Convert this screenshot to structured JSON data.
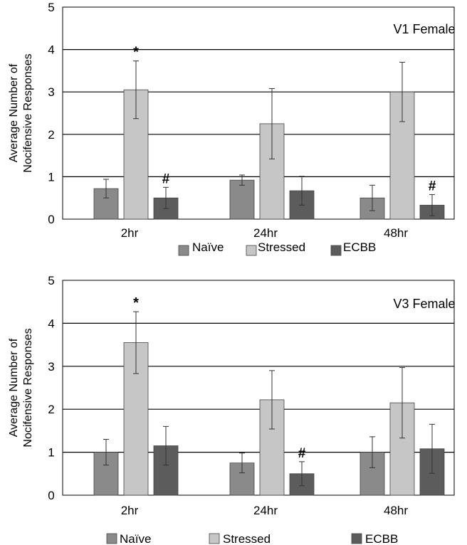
{
  "chart_data": [
    {
      "type": "bar",
      "title": "V1 Female",
      "ylabel": "Average Number of Nocifensive Responses",
      "ylabel_lines": [
        "Average Number of",
        "Nocifensive Responses"
      ],
      "xlabel": "",
      "ylim": [
        0,
        5
      ],
      "yticks": [
        "0",
        "1",
        "2",
        "3",
        "4",
        "5"
      ],
      "grid": true,
      "categories": [
        "2hr",
        "24hr",
        "48hr"
      ],
      "series": [
        {
          "name": "Naïve",
          "color": "#8a8a8a",
          "values": [
            0.72,
            0.92,
            0.5
          ],
          "errors": [
            0.22,
            0.12,
            0.3
          ]
        },
        {
          "name": "Stressed",
          "color": "#c6c6c6",
          "values": [
            3.05,
            2.25,
            3.0
          ],
          "errors": [
            0.68,
            0.83,
            0.7
          ]
        },
        {
          "name": "ECBB",
          "color": "#5c5c5c",
          "values": [
            0.5,
            0.67,
            0.33
          ],
          "errors": [
            0.25,
            0.34,
            0.25
          ]
        }
      ],
      "annotations": [
        {
          "category": "2hr",
          "series": "Stressed",
          "text": "*"
        },
        {
          "category": "2hr",
          "series": "ECBB",
          "text": "#"
        },
        {
          "category": "48hr",
          "series": "ECBB",
          "text": "#"
        }
      ],
      "legend": [
        "Naïve",
        "Stressed",
        "ECBB"
      ]
    },
    {
      "type": "bar",
      "title": "V3 Female",
      "ylabel": "Average Number of Nocifensive Responses",
      "ylabel_lines": [
        "Average Number of",
        "Nocifensive Responses"
      ],
      "xlabel": "",
      "ylim": [
        0,
        5
      ],
      "yticks": [
        "0",
        "1",
        "2",
        "3",
        "4",
        "5"
      ],
      "grid": true,
      "categories": [
        "2hr",
        "24hr",
        "48hr"
      ],
      "series": [
        {
          "name": "Naïve",
          "color": "#8a8a8a",
          "values": [
            1.0,
            0.75,
            1.0
          ],
          "errors": [
            0.3,
            0.23,
            0.36
          ]
        },
        {
          "name": "Stressed",
          "color": "#c6c6c6",
          "values": [
            3.55,
            2.22,
            2.15
          ],
          "errors": [
            0.72,
            0.68,
            0.82
          ]
        },
        {
          "name": "ECBB",
          "color": "#5c5c5c",
          "values": [
            1.15,
            0.5,
            1.08
          ],
          "errors": [
            0.45,
            0.28,
            0.57
          ]
        }
      ],
      "annotations": [
        {
          "category": "2hr",
          "series": "Stressed",
          "text": "*"
        },
        {
          "category": "24hr",
          "series": "ECBB",
          "text": "#"
        }
      ],
      "legend": [
        "Naïve",
        "Stressed",
        "ECBB"
      ]
    }
  ]
}
